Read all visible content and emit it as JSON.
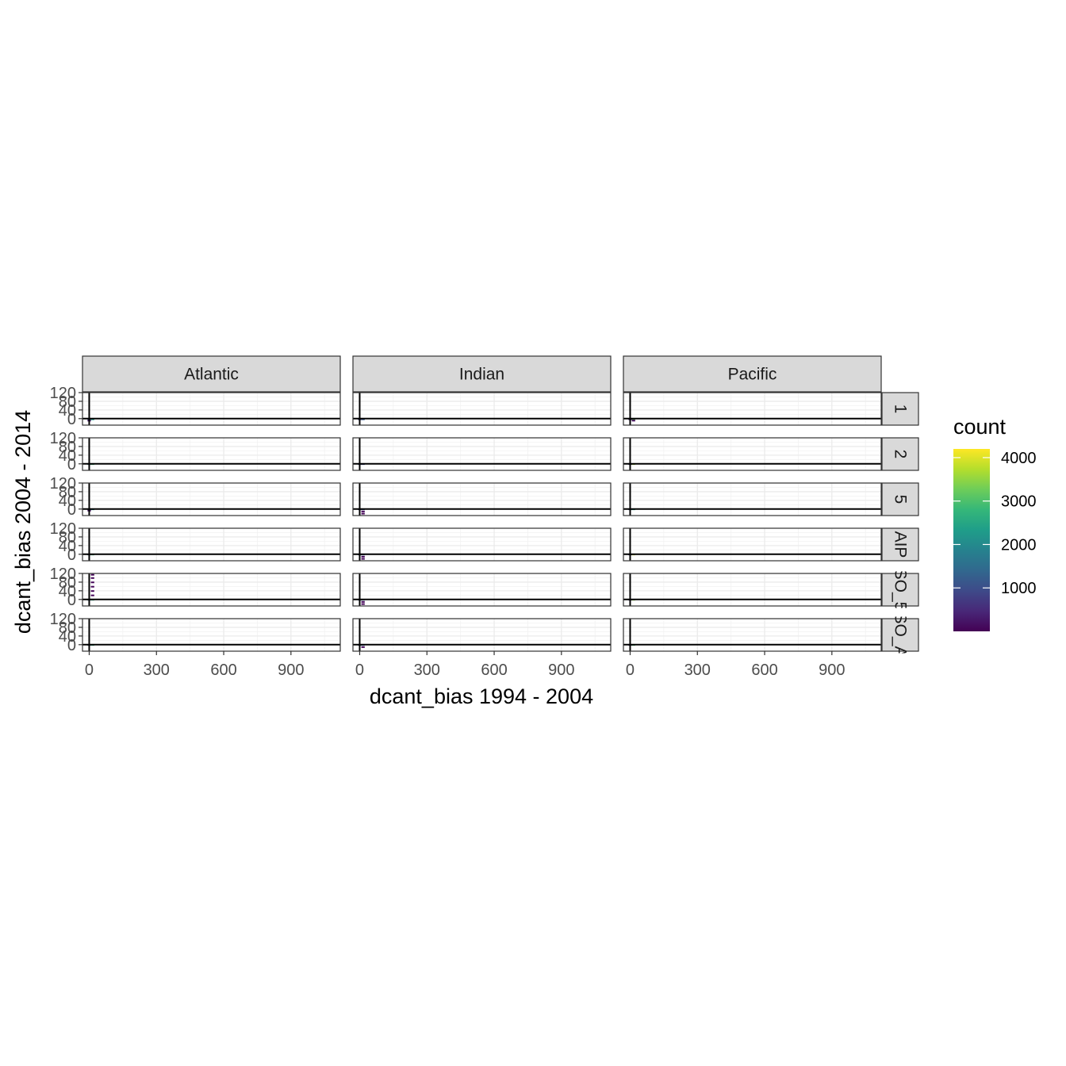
{
  "chart_data": {
    "type": "heatmap",
    "geom": "bin2d",
    "xlabel": "dcant_bias 1994 - 2004",
    "ylabel": "dcant_bias 2004 - 2014",
    "xlim": [
      -30,
      1120
    ],
    "ylim": [
      -30,
      120
    ],
    "x_ticks": [
      0,
      300,
      600,
      900
    ],
    "x_tick_labels": [
      "0",
      "300",
      "600",
      "900"
    ],
    "y_ticks": [
      0,
      40,
      80,
      120
    ],
    "y_tick_labels": [
      "0",
      "40",
      "80",
      "120"
    ],
    "reference_lines": {
      "x": 0,
      "y": 0
    },
    "grid": true,
    "legend": {
      "title": "count",
      "position": "right",
      "palette": "viridis",
      "colors": [
        "#440154",
        "#482878",
        "#3E4A89",
        "#31688E",
        "#26828E",
        "#1F9E89",
        "#35B779",
        "#6DCD59",
        "#B4DE2C",
        "#FDE725"
      ],
      "range": [
        0,
        4200
      ],
      "ticks": [
        1000,
        2000,
        3000,
        4000
      ],
      "tick_labels": [
        "1000",
        "2000",
        "3000",
        "4000"
      ]
    },
    "col_facets": [
      "Atlantic",
      "Indian",
      "Pacific"
    ],
    "row_facets": [
      "1",
      "2",
      "5",
      "AIP",
      "SO_5",
      "SO_AIP"
    ],
    "row_facet_labels_visible": [
      "1",
      "2",
      "5",
      "AIP",
      "SO_5",
      "SO_A"
    ],
    "panels": [
      {
        "row": 0,
        "col": 0,
        "bins": [
          {
            "x": 0,
            "y": -2,
            "count": 1300
          },
          {
            "x": 15,
            "y": -2,
            "count": 2300
          },
          {
            "x": 0,
            "y": -8,
            "count": 200
          }
        ]
      },
      {
        "row": 0,
        "col": 1,
        "bins": [
          {
            "x": 0,
            "y": -2,
            "count": 800
          },
          {
            "x": 15,
            "y": -2,
            "count": 1200
          }
        ]
      },
      {
        "row": 0,
        "col": 2,
        "bins": [
          {
            "x": 0,
            "y": -2,
            "count": 400
          },
          {
            "x": 15,
            "y": -2,
            "count": 3200
          },
          {
            "x": 15,
            "y": -8,
            "count": 100
          }
        ]
      },
      {
        "row": 1,
        "col": 0,
        "bins": [
          {
            "x": 0,
            "y": 0,
            "count": 1700
          },
          {
            "x": 15,
            "y": 0,
            "count": 2900
          }
        ]
      },
      {
        "row": 1,
        "col": 1,
        "bins": [
          {
            "x": 0,
            "y": 0,
            "count": 1000
          },
          {
            "x": 15,
            "y": 0,
            "count": 900
          }
        ]
      },
      {
        "row": 1,
        "col": 2,
        "bins": [
          {
            "x": 0,
            "y": 0,
            "count": 700
          },
          {
            "x": 15,
            "y": 0,
            "count": 3600
          }
        ]
      },
      {
        "row": 2,
        "col": 0,
        "bins": [
          {
            "x": 0,
            "y": 0,
            "count": 1100
          },
          {
            "x": 15,
            "y": 0,
            "count": 2100
          },
          {
            "x": 0,
            "y": -6,
            "count": 150
          }
        ]
      },
      {
        "row": 2,
        "col": 1,
        "bins": [
          {
            "x": 0,
            "y": 0,
            "count": 800
          },
          {
            "x": 15,
            "y": 0,
            "count": 1100
          },
          {
            "x": 15,
            "y": -10,
            "count": 60
          },
          {
            "x": 15,
            "y": -20,
            "count": 60
          }
        ]
      },
      {
        "row": 2,
        "col": 2,
        "bins": [
          {
            "x": 0,
            "y": 0,
            "count": 900
          },
          {
            "x": 15,
            "y": 0,
            "count": 2500
          }
        ]
      },
      {
        "row": 3,
        "col": 0,
        "bins": [
          {
            "x": 0,
            "y": 0,
            "count": 1500
          },
          {
            "x": 15,
            "y": 0,
            "count": 2800
          }
        ]
      },
      {
        "row": 3,
        "col": 1,
        "bins": [
          {
            "x": 0,
            "y": 0,
            "count": 1100
          },
          {
            "x": 15,
            "y": 0,
            "count": 1600
          },
          {
            "x": 15,
            "y": -10,
            "count": 60
          },
          {
            "x": 15,
            "y": -20,
            "count": 60
          }
        ]
      },
      {
        "row": 3,
        "col": 2,
        "bins": [
          {
            "x": 0,
            "y": 0,
            "count": 700
          },
          {
            "x": 15,
            "y": 0,
            "count": 3900
          }
        ]
      },
      {
        "row": 4,
        "col": 0,
        "bins": [
          {
            "x": 0,
            "y": 0,
            "count": 1400
          },
          {
            "x": 15,
            "y": 0,
            "count": 2600
          },
          {
            "x": 15,
            "y": 20,
            "count": 50
          },
          {
            "x": 15,
            "y": 40,
            "count": 50
          },
          {
            "x": 15,
            "y": 60,
            "count": 50
          },
          {
            "x": 15,
            "y": 80,
            "count": 50
          },
          {
            "x": 15,
            "y": 100,
            "count": 50
          },
          {
            "x": 15,
            "y": 115,
            "count": 50
          }
        ]
      },
      {
        "row": 4,
        "col": 1,
        "bins": [
          {
            "x": 0,
            "y": 0,
            "count": 1100
          },
          {
            "x": 15,
            "y": 0,
            "count": 1500
          },
          {
            "x": 15,
            "y": -10,
            "count": 60
          },
          {
            "x": 15,
            "y": -20,
            "count": 60
          }
        ]
      },
      {
        "row": 4,
        "col": 2,
        "bins": [
          {
            "x": 0,
            "y": 0,
            "count": 600
          },
          {
            "x": 15,
            "y": 0,
            "count": 3500
          }
        ]
      },
      {
        "row": 5,
        "col": 0,
        "bins": [
          {
            "x": 0,
            "y": 0,
            "count": 1300
          },
          {
            "x": 15,
            "y": 0,
            "count": 2700
          }
        ]
      },
      {
        "row": 5,
        "col": 1,
        "bins": [
          {
            "x": 0,
            "y": 0,
            "count": 1000
          },
          {
            "x": 15,
            "y": 0,
            "count": 1400
          },
          {
            "x": 15,
            "y": -10,
            "count": 60
          }
        ]
      },
      {
        "row": 5,
        "col": 2,
        "bins": [
          {
            "x": 0,
            "y": 0,
            "count": 500
          },
          {
            "x": 15,
            "y": 0,
            "count": 3000
          }
        ]
      }
    ]
  }
}
